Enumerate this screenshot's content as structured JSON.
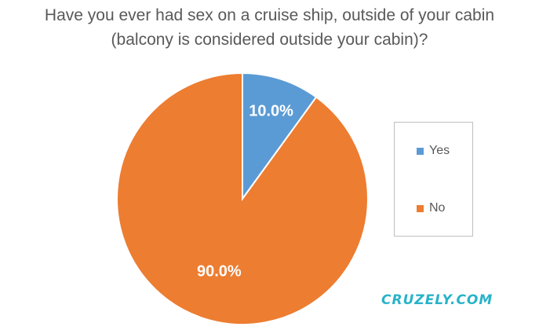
{
  "chart_data": {
    "type": "pie",
    "title_lines": [
      "Have you ever had sex on a cruise ship, outside of your cabin",
      "(balcony is considered outside your cabin)?"
    ],
    "categories": [
      "Yes",
      "No"
    ],
    "values": [
      10.0,
      90.0
    ],
    "data_labels": [
      "10.0%",
      "90.0%"
    ],
    "colors": [
      "#5b9bd5",
      "#ed7d31"
    ],
    "legend_position": "right",
    "start_angle_deg": 0,
    "direction": "clockwise"
  },
  "legend": {
    "items": [
      {
        "label": "Yes",
        "color": "#5b9bd5"
      },
      {
        "label": "No",
        "color": "#ed7d31"
      }
    ]
  },
  "watermark": "CRUZELY.COM"
}
